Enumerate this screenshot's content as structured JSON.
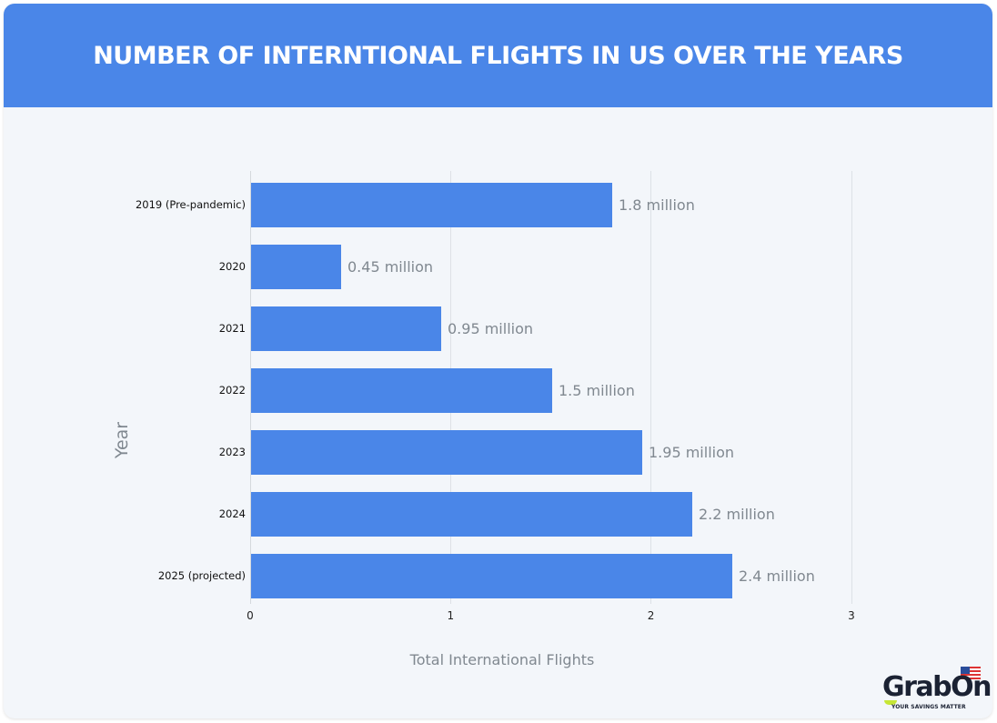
{
  "header": {
    "title": "NUMBER OF INTERNTIONAL FLIGHTS IN US OVER THE YEARS"
  },
  "colors": {
    "header_bg": "#4a86e8",
    "bar": "#4a86e8",
    "card_bg": "#f3f6fa",
    "label_gray": "#808890"
  },
  "chart_data": {
    "type": "bar",
    "orientation": "horizontal",
    "title": "NUMBER OF INTERNTIONAL FLIGHTS IN US OVER THE YEARS",
    "xlabel": "Total International Flights",
    "ylabel": "Year",
    "categories": [
      "2019 (Pre-pandemic)",
      "2020",
      "2021",
      "2022",
      "2023",
      "2024",
      "2025 (projected)"
    ],
    "values": [
      1.8,
      0.45,
      0.95,
      1.5,
      1.95,
      2.2,
      2.4
    ],
    "data_labels": [
      "1.8  million",
      "0.45 million",
      "0.95 million",
      "1.5 million",
      "1.95 million",
      "2.2 million",
      "2.4 million"
    ],
    "unit": "million",
    "xlim": [
      0,
      3
    ],
    "xticks": [
      "0",
      "1",
      "2",
      "3"
    ],
    "grid": "vertical",
    "legend": null
  },
  "branding": {
    "logo_text": "GrabOn",
    "tagline": "YOUR SAVINGS MATTER",
    "flag_icon": "us-flag-icon"
  }
}
